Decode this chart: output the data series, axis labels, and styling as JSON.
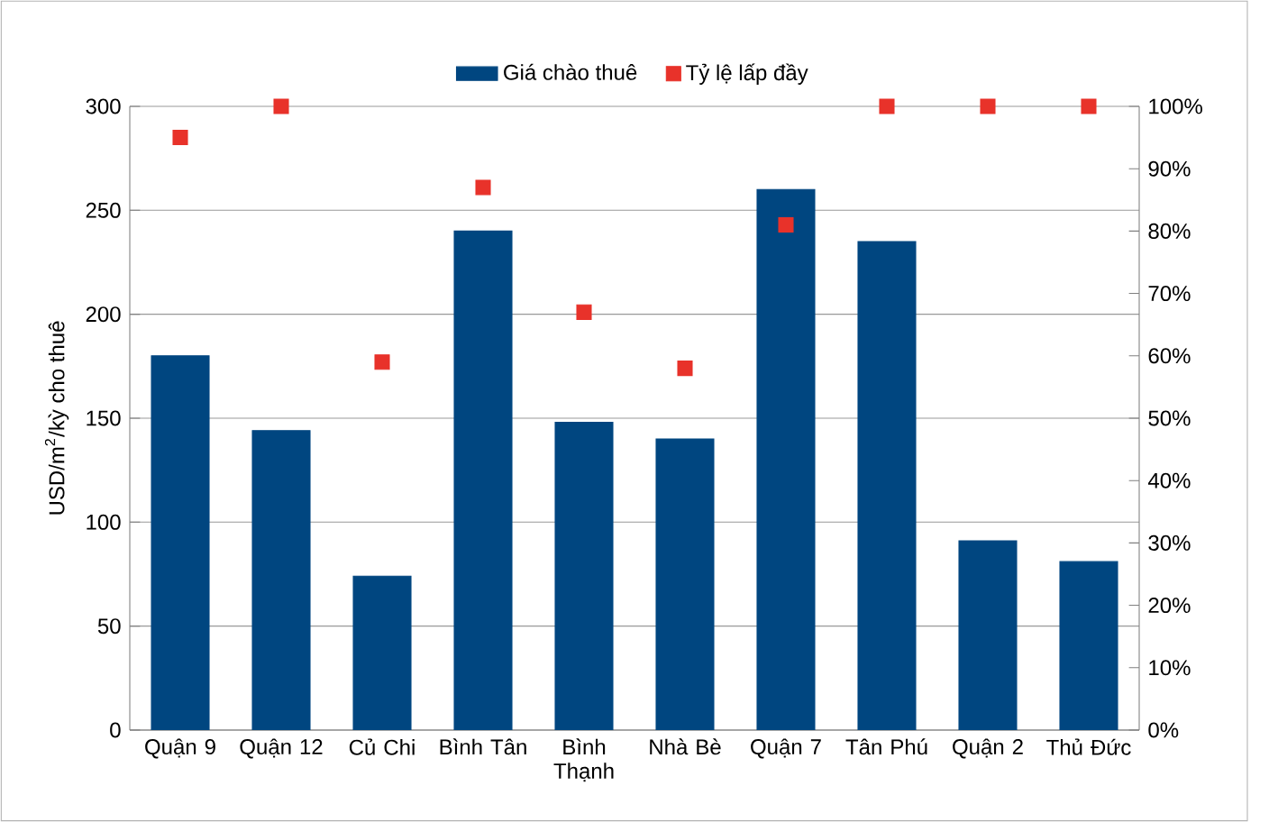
{
  "chart_data": {
    "type": "bar",
    "categories": [
      "Quận 9",
      "Quận 12",
      "Củ Chi",
      "Bình Tân",
      "Bình Thạnh",
      "Nhà Bè",
      "Quận 7",
      "Tân Phú",
      "Quận 2",
      "Thủ Đức"
    ],
    "series": [
      {
        "name": "Giá chào thuê",
        "color": "#004680",
        "values": [
          180,
          144,
          74,
          240,
          148,
          140,
          260,
          235,
          91,
          81
        ]
      },
      {
        "name": "Tỷ lệ lấp đầy",
        "type": "scatter",
        "axis": "y2",
        "marker": "square",
        "color": "#e8322a",
        "values": [
          95,
          100,
          59,
          87,
          67,
          58,
          81,
          100,
          100,
          100
        ]
      }
    ],
    "ylabel": "USD/m$^{2}$/kỳ cho thuê",
    "ylim": [
      0,
      300
    ],
    "yticks": [
      0,
      50,
      100,
      150,
      200,
      250,
      300
    ],
    "y2lim": [
      0,
      100
    ],
    "y2ticks": [
      {
        "value": 0,
        "label": "0%"
      },
      {
        "value": 10,
        "label": "10%"
      },
      {
        "value": 20,
        "label": "20%"
      },
      {
        "value": 30,
        "label": "30%"
      },
      {
        "value": 40,
        "label": "40%"
      },
      {
        "value": 50,
        "label": "50%"
      },
      {
        "value": 60,
        "label": "60%"
      },
      {
        "value": 70,
        "label": "70%"
      },
      {
        "value": 80,
        "label": "80%"
      },
      {
        "value": 90,
        "label": "90%"
      },
      {
        "value": 100,
        "label": "100%"
      }
    ],
    "grid": "y",
    "legend": "top"
  }
}
